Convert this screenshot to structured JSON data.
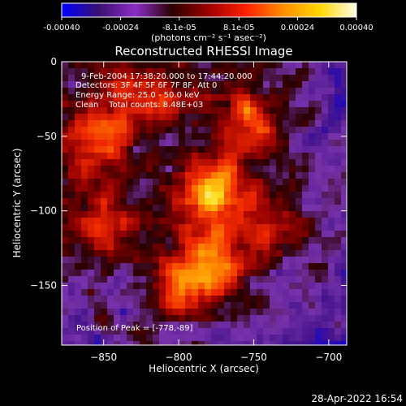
{
  "chart_data": {
    "type": "heatmap",
    "title": "Reconstructed RHESSI Image",
    "xlabel": "Heliocentric X (arcsec)",
    "ylabel": "Heliocentric Y (arcsec)",
    "xlim": [
      -878,
      -688
    ],
    "ylim": [
      -190,
      0
    ],
    "x_ticks": [
      -850,
      -800,
      -750,
      -700
    ],
    "y_ticks": [
      0,
      -50,
      -100,
      -150
    ],
    "colorbar": {
      "range": [
        -0.0004,
        0.0004
      ],
      "tick_values": [
        -0.0004,
        -0.00024,
        -8.1e-05,
        8.1e-05,
        0.00024,
        0.0004
      ],
      "tick_labels": [
        "-0.00040",
        "-0.00024",
        "-8.1e-05",
        "8.1e-05",
        "0.00024",
        "0.00040"
      ],
      "label": "(photons cm⁻² s⁻¹ asec⁻²)",
      "colors": [
        "#0000ff",
        "#3a1070",
        "#8c2cc8",
        "#2a0000",
        "#a00000",
        "#ff2000",
        "#ff8c00",
        "#ffd600",
        "#ffffe6"
      ]
    },
    "annotations": [
      "9-Feb-2004 17:38:20.000 to 17:44:20.000",
      "Detectors: 3F 4F 5F 6F 7F 8F, Att 0",
      "Energy Range: 25.0 - 50.0 keV",
      "Clean    Total counts: 8.48E+03"
    ],
    "peak_label": "Position of Peak = [-778,-89]",
    "peak": {
      "x": -778,
      "y": -89
    },
    "sources": [
      {
        "x": -778,
        "y": -89,
        "peak": 1.0
      },
      {
        "x": -780,
        "y": -138,
        "peak": 0.85
      },
      {
        "x": -855,
        "y": -52,
        "peak": 0.65
      },
      {
        "x": -828,
        "y": -22,
        "peak": 0.55
      },
      {
        "x": -755,
        "y": -40,
        "peak": 0.55
      },
      {
        "x": -848,
        "y": -110,
        "peak": 0.45
      },
      {
        "x": -805,
        "y": -155,
        "peak": 0.4
      },
      {
        "x": -735,
        "y": -110,
        "peak": 0.35
      }
    ]
  },
  "footer": {
    "timestamp": "28-Apr-2022 16:54"
  }
}
